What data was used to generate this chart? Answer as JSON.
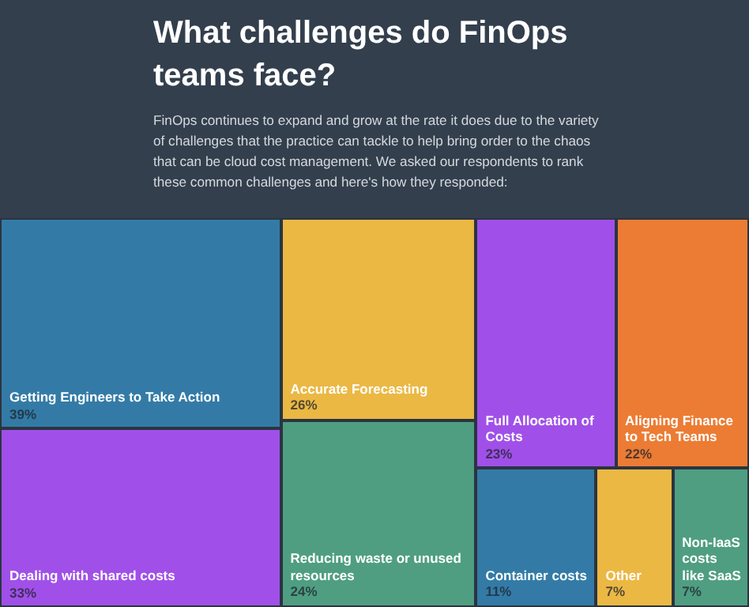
{
  "chart_data": {
    "type": "other",
    "title": "What challenges do FinOps teams face?",
    "subtitle": "FinOps continues to expand and grow at the rate it does due to the variety of challenges that the practice can tackle to help bring order to the chaos that can be cloud cost management. We asked our respondents to rank these common challenges and here's how they responded:",
    "categories": [
      "Getting Engineers to Take Action",
      "Dealing with shared costs",
      "Accurate Forecasting",
      "Reducing waste or unused resources",
      "Full Allocation of Costs",
      "Aligning Finance to Tech Teams",
      "Container costs",
      "Other",
      "Non-IaaS costs like SaaS"
    ],
    "values": [
      39,
      33,
      26,
      24,
      23,
      22,
      11,
      7,
      7
    ],
    "value_labels": [
      "39%",
      "33%",
      "26%",
      "24%",
      "23%",
      "22%",
      "11%",
      "7%",
      "7%"
    ],
    "colors": [
      "#337ba6",
      "#a050e8",
      "#ebb844",
      "#4f9e82",
      "#a050e8",
      "#ec7c34",
      "#337ba6",
      "#ebb844",
      "#4f9e82"
    ]
  }
}
